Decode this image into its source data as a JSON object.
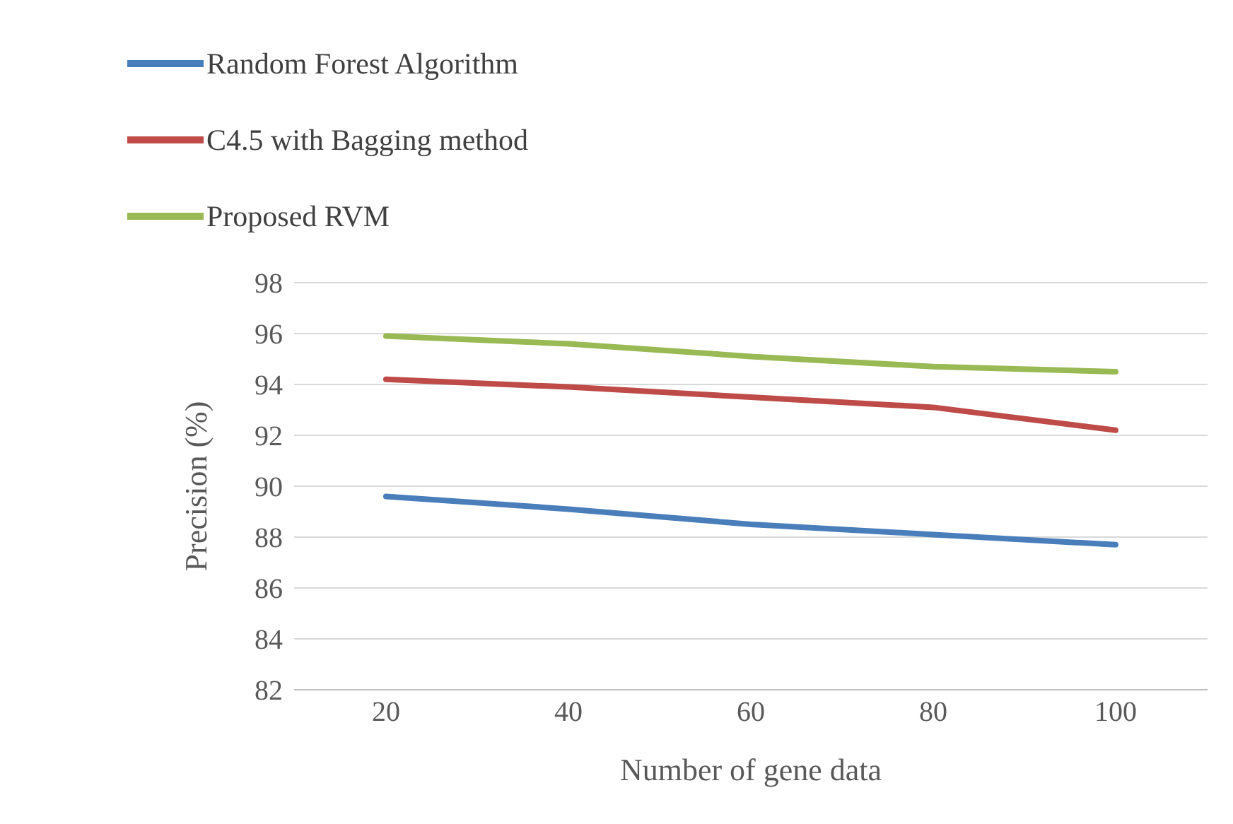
{
  "chart_data": {
    "type": "line",
    "xlabel": "Number of gene data",
    "ylabel": "Precision (%)",
    "categories": [
      "20",
      "40",
      "60",
      "80",
      "100"
    ],
    "series": [
      {
        "name": "Random Forest Algorithm",
        "color": "#4a7ebb",
        "values": [
          89.6,
          89.1,
          88.5,
          88.1,
          87.7
        ]
      },
      {
        "name": "C4.5 with Bagging method",
        "color": "#be4b48",
        "values": [
          94.2,
          93.9,
          93.5,
          93.1,
          92.2
        ]
      },
      {
        "name": "Proposed RVM",
        "color": "#98b954",
        "values": [
          95.9,
          95.6,
          95.1,
          94.7,
          94.5
        ]
      }
    ],
    "ylim": [
      82,
      98
    ],
    "yticks": [
      82,
      84,
      86,
      88,
      90,
      92,
      94,
      96,
      98
    ],
    "grid": "y",
    "legend": "top",
    "marker": "none",
    "line_style": "solid"
  }
}
